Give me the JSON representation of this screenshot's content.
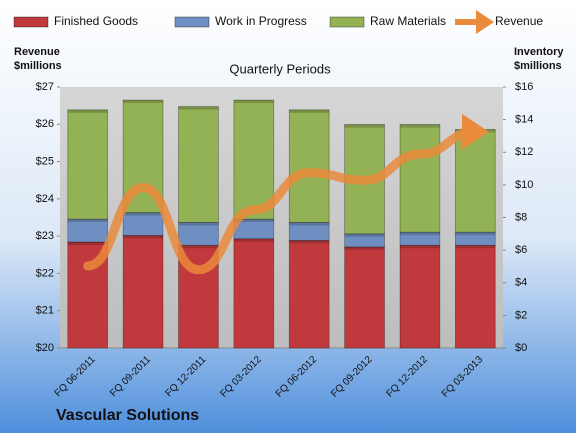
{
  "chart_data": {
    "type": "bar",
    "title": "Vascular Solutions",
    "subtitle": "Quarterly Periods",
    "y_label_lines": [
      "Revenue",
      "$millions"
    ],
    "y2_label_lines": [
      "Inventory",
      "$millions"
    ],
    "categories": [
      "FQ 06-2011",
      "FQ 09-2011",
      "FQ 12-2011",
      "FQ 03-2012",
      "FQ 06-2012",
      "FQ 09-2012",
      "FQ 12-2012",
      "FQ 03-2013"
    ],
    "series": [
      {
        "name": "Finished Goods",
        "color": "#c0393d",
        "axis": "y2",
        "values": [
          6.5,
          6.9,
          6.3,
          6.7,
          6.6,
          6.2,
          6.3,
          6.3
        ]
      },
      {
        "name": "Work in Progress",
        "color": "#6f8fc2",
        "axis": "y2",
        "values": [
          1.4,
          1.4,
          1.4,
          1.2,
          1.1,
          0.8,
          0.8,
          0.8
        ]
      },
      {
        "name": "Raw Materials",
        "color": "#93b155",
        "axis": "y2",
        "values": [
          6.7,
          6.9,
          7.1,
          7.3,
          6.9,
          6.7,
          6.6,
          6.3
        ]
      },
      {
        "name": "Revenue",
        "color": "#ea8a3b",
        "type": "line",
        "values": [
          22.2,
          24.3,
          22.1,
          23.7,
          24.7,
          24.5,
          25.2,
          25.8
        ]
      }
    ],
    "ylim": [
      20,
      27
    ],
    "yticks": [
      {
        "value": 20,
        "label": "$20"
      },
      {
        "value": 21,
        "label": "$21"
      },
      {
        "value": 22,
        "label": "$22"
      },
      {
        "value": 23,
        "label": "$23"
      },
      {
        "value": 24,
        "label": "$24"
      },
      {
        "value": 25,
        "label": "$25"
      },
      {
        "value": 26,
        "label": "$26"
      },
      {
        "value": 27,
        "label": "$27"
      }
    ],
    "y2lim": [
      0,
      16
    ],
    "y2ticks": [
      {
        "value": 0,
        "label": "$0"
      },
      {
        "value": 2,
        "label": "$2"
      },
      {
        "value": 4,
        "label": "$4"
      },
      {
        "value": 6,
        "label": "$6"
      },
      {
        "value": 8,
        "label": "$8"
      },
      {
        "value": 10,
        "label": "$10"
      },
      {
        "value": 12,
        "label": "$12"
      },
      {
        "value": 14,
        "label": "$14"
      },
      {
        "value": 16,
        "label": "$16"
      }
    ],
    "legend": "top"
  }
}
